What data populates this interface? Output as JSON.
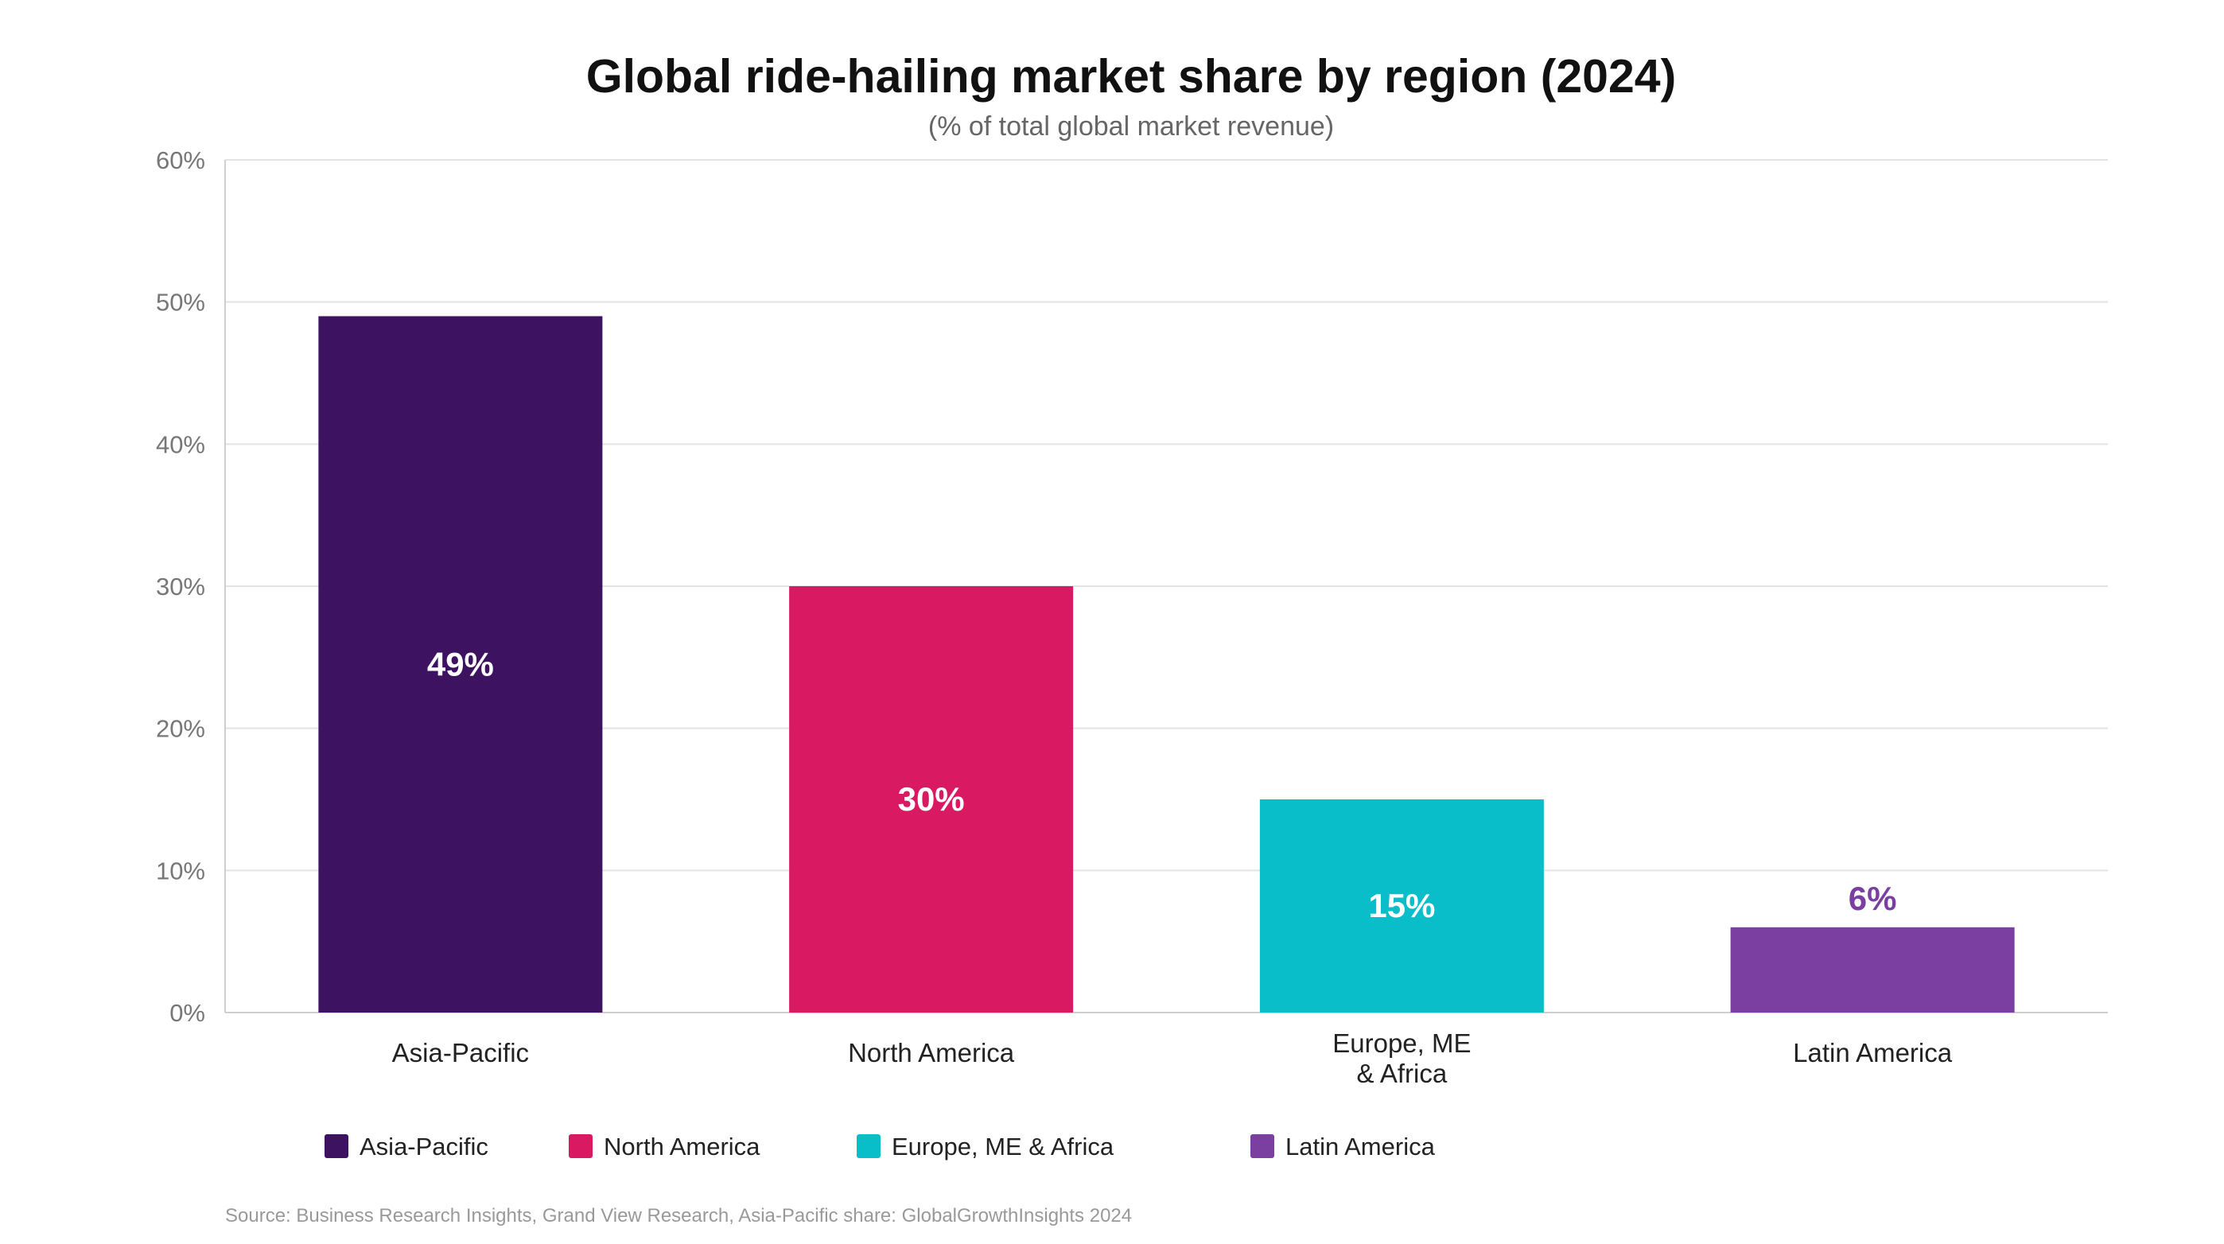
{
  "chart_data": {
    "type": "bar",
    "title": "Global ride-hailing market share by region (2024)",
    "subtitle": "(% of total global market revenue)",
    "categories": [
      [
        "Asia-Pacific"
      ],
      [
        "North America"
      ],
      [
        "Europe, ME",
        "& Africa"
      ],
      [
        "Latin America"
      ]
    ],
    "values": [
      49,
      30,
      15,
      6
    ],
    "data_labels": [
      "49%",
      "30%",
      "15%",
      "6%"
    ],
    "colors": [
      "#3d1260",
      "#d91a63",
      "#09bec8",
      "#7a3fa0"
    ],
    "label_inside": [
      true,
      true,
      true,
      false
    ],
    "ylim": [
      0,
      60
    ],
    "y_ticks": [
      0,
      10,
      20,
      30,
      40,
      50,
      60
    ],
    "y_tick_labels": [
      "0%",
      "10%",
      "20%",
      "30%",
      "40%",
      "50%",
      "60%"
    ],
    "grid": true,
    "legend": {
      "placement": "bottom-left",
      "entries": [
        "Asia-Pacific",
        "North America",
        "Europe, ME & Africa",
        "Latin America"
      ]
    },
    "source": "Source: Business Research Insights, Grand View Research, Asia-Pacific share: GlobalGrowthInsights 2024"
  }
}
